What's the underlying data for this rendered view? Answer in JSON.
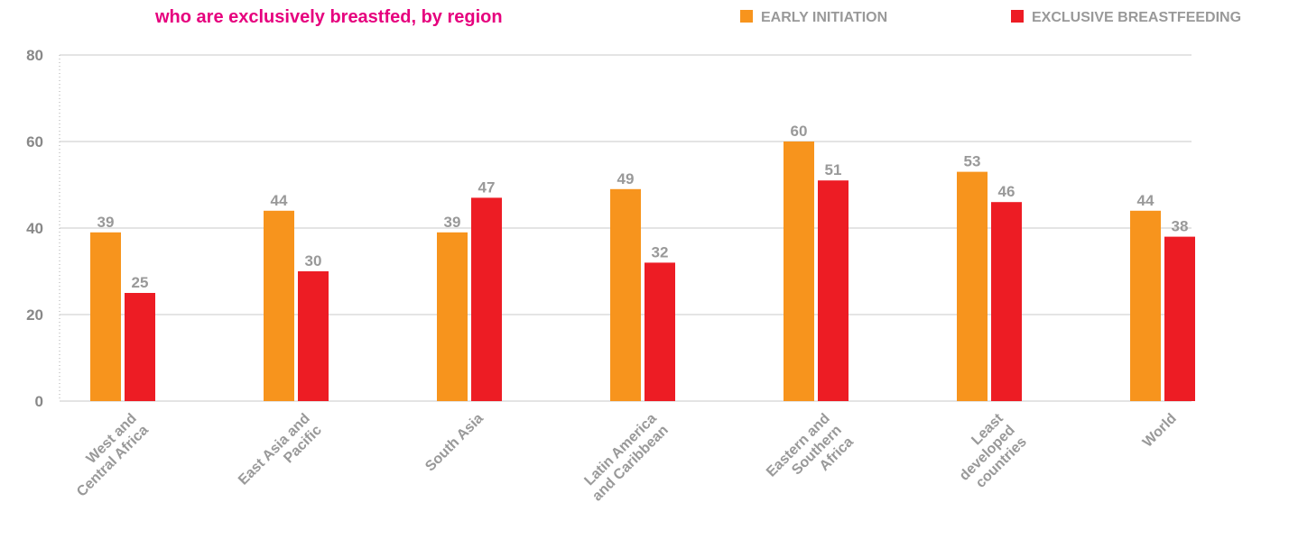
{
  "chart_data": {
    "type": "bar",
    "title": "who are exclusively breastfed, by region",
    "categories": [
      "West and\nCentral Africa",
      "East Asia and\nPacific",
      "South Asia",
      "Latin America\nand Caribbean",
      "Eastern and\nSouthern\nAfrica",
      "Least\ndeveloped\ncountries",
      "World"
    ],
    "series": [
      {
        "name": "EARLY INITIATION",
        "color": "#f7941d",
        "values": [
          39,
          44,
          39,
          49,
          60,
          53,
          44
        ]
      },
      {
        "name": "EXCLUSIVE BREASTFEEDING",
        "color": "#ed1c24",
        "values": [
          25,
          30,
          47,
          32,
          51,
          46,
          38
        ]
      }
    ],
    "ylim": [
      0,
      80
    ],
    "yticks": [
      0,
      20,
      40,
      60,
      80
    ],
    "grid": true
  }
}
